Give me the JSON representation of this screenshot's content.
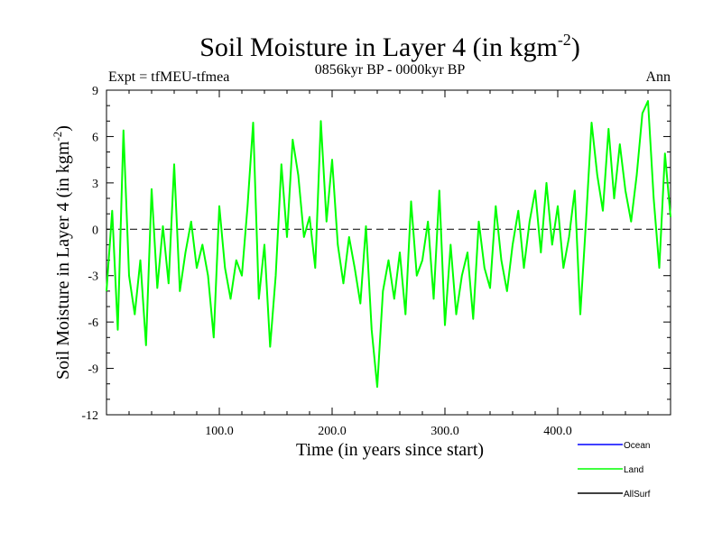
{
  "chart_data": {
    "type": "line",
    "title": "Soil Moisture in Layer 4 (in kgm",
    "title_sup": "-2",
    "title_close": ")",
    "subtitle": "0856kyr BP - 0000kyr BP",
    "expt_label": "Expt = tfMEU-tfmea",
    "period_label": "Ann",
    "xlabel": "Time (in years since start)",
    "ylabel": "Soil Moisture in Layer 4 (in kgm",
    "ylabel_sup": "-2",
    "ylabel_close": ")",
    "xlim": [
      0,
      500
    ],
    "ylim": [
      -12,
      9
    ],
    "x_ticks": [
      100,
      200,
      300,
      400
    ],
    "x_tick_labels": [
      "100.0",
      "200.0",
      "300.0",
      "400.0"
    ],
    "y_ticks": [
      9,
      6,
      3,
      0,
      -3,
      -6,
      -9,
      -12
    ],
    "y_tick_labels": [
      "9",
      "6",
      "3",
      "0",
      "-3",
      "-6",
      "-9",
      "-12"
    ],
    "zero_line": true,
    "colors": {
      "ocean": "#0000ff",
      "land": "#00ff00",
      "allsurf": "#000000"
    },
    "legend": [
      {
        "name": "Ocean",
        "color": "#0000ff"
      },
      {
        "name": "Land",
        "color": "#00ff00"
      },
      {
        "name": "AllSurf",
        "color": "#000000"
      }
    ],
    "series": [
      {
        "name": "Land",
        "color": "#00ff00",
        "x": [
          0,
          5,
          10,
          15,
          20,
          25,
          30,
          35,
          40,
          45,
          50,
          55,
          60,
          65,
          70,
          75,
          80,
          85,
          90,
          95,
          100,
          105,
          110,
          115,
          120,
          125,
          130,
          135,
          140,
          145,
          150,
          155,
          160,
          165,
          170,
          175,
          180,
          185,
          190,
          195,
          200,
          205,
          210,
          215,
          220,
          225,
          230,
          235,
          240,
          245,
          250,
          255,
          260,
          265,
          270,
          275,
          280,
          285,
          290,
          295,
          300,
          305,
          310,
          315,
          320,
          325,
          330,
          335,
          340,
          345,
          350,
          355,
          360,
          365,
          370,
          375,
          380,
          385,
          390,
          395,
          400,
          405,
          410,
          415,
          420,
          425,
          430,
          435,
          440,
          445,
          450,
          455,
          460,
          465,
          470,
          475,
          480,
          485,
          490,
          495,
          500
        ],
        "values": [
          -4,
          1.2,
          -6.5,
          6.4,
          -3,
          -5.5,
          -2,
          -7.5,
          2.6,
          -3.8,
          0.2,
          -3.5,
          4.2,
          -4,
          -1.5,
          0.5,
          -2.5,
          -1,
          -3,
          -7,
          1.5,
          -2.5,
          -4.5,
          -2,
          -3,
          1.5,
          6.9,
          -4.5,
          -1,
          -7.6,
          -3,
          4.2,
          -0.5,
          5.8,
          3.5,
          -0.5,
          0.8,
          -2.5,
          7,
          0.5,
          4.5,
          -1,
          -3.5,
          -0.5,
          -2.5,
          -4.8,
          0.2,
          -6.5,
          -10.2,
          -4,
          -2,
          -4.5,
          -1.5,
          -5.5,
          1.8,
          -3,
          -2,
          0.5,
          -4.5,
          2.5,
          -6.2,
          -1,
          -5.5,
          -3,
          -1.5,
          -5.8,
          0.5,
          -2.5,
          -3.8,
          1.5,
          -2,
          -4,
          -1,
          1.2,
          -2.5,
          0.5,
          2.5,
          -1.5,
          3,
          -1,
          1.5,
          -2.5,
          -0.5,
          2.5,
          -5.5,
          0.5,
          6.9,
          3.5,
          1.2,
          6.5,
          2,
          5.5,
          2.5,
          0.5,
          3.5,
          7.5,
          8.3,
          2,
          -2.5,
          4.9,
          0.8
        ]
      }
    ]
  }
}
